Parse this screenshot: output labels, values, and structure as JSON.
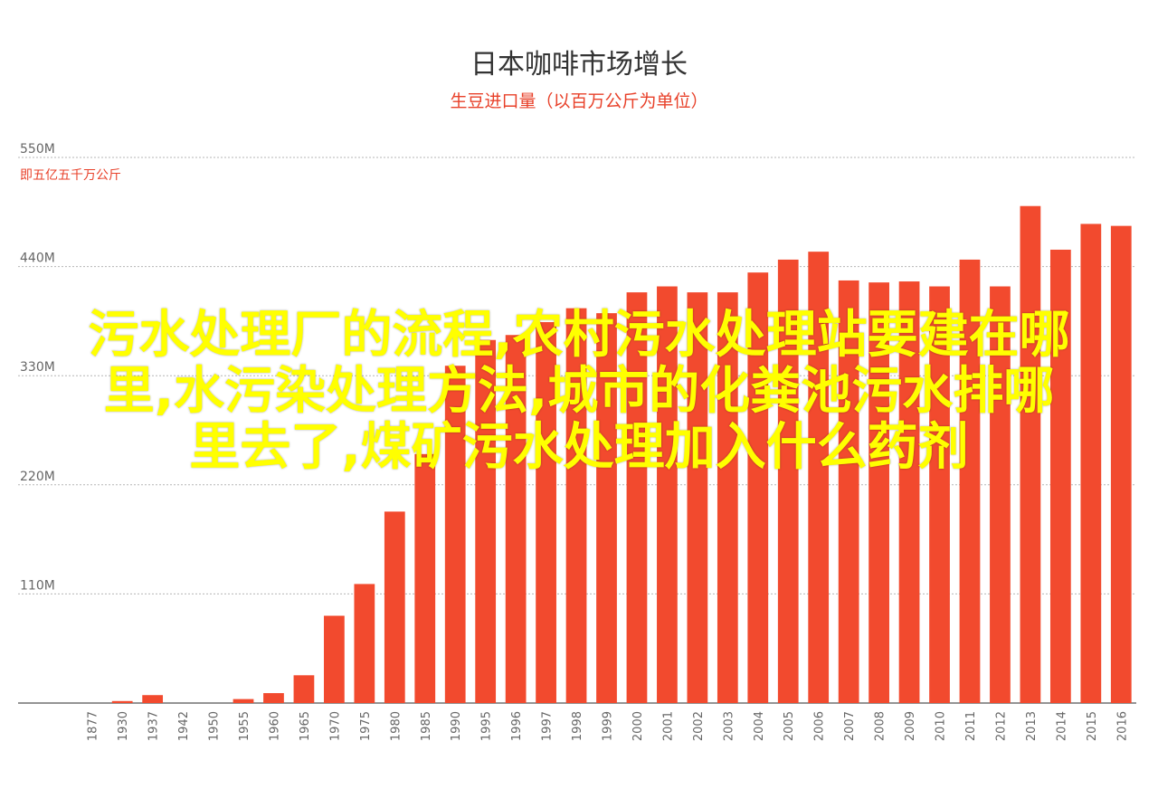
{
  "chart_data": {
    "type": "bar",
    "title": "日本咖啡市场增长",
    "subtitle": "生豆进口量（以百万公斤为单位）",
    "unit_note": "即五亿五千万公斤",
    "xlabel": "",
    "ylabel": "",
    "ylim": [
      0,
      550
    ],
    "yticks": [
      0,
      110,
      220,
      330,
      440,
      550
    ],
    "ytick_labels": [
      "",
      "110M",
      "220M",
      "330M",
      "440M",
      "550M"
    ],
    "grid": true,
    "bar_color": "#f24a2e",
    "categories": [
      "1877",
      "1930",
      "1937",
      "1942",
      "1950",
      "1955",
      "1960",
      "1965",
      "1970",
      "1975",
      "1980",
      "1985",
      "1990",
      "1995",
      "1996",
      "1997",
      "1998",
      "1999",
      "2000",
      "2001",
      "2002",
      "2003",
      "2004",
      "2005",
      "2006",
      "2007",
      "2008",
      "2009",
      "2010",
      "2011",
      "2012",
      "2013",
      "2014",
      "2015",
      "2016"
    ],
    "values": [
      0,
      2,
      8,
      0,
      0,
      4,
      10,
      28,
      88,
      120,
      193,
      251,
      340,
      366,
      371,
      384,
      398,
      393,
      414,
      420,
      414,
      414,
      434,
      447,
      455,
      426,
      424,
      425,
      420,
      447,
      420,
      501,
      457,
      483,
      481
    ]
  },
  "overlay_lines": [
    "污水处理厂的流程,农村污水处理站要建在哪",
    "里,水污染处理方法,城市的化粪池污水排哪",
    "里去了,煤矿污水处理加入什么药剂"
  ]
}
